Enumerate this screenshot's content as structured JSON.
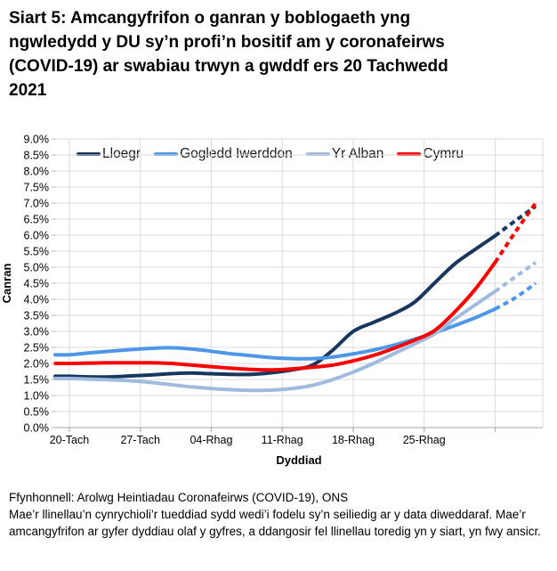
{
  "title": "Siart 5: Amcangyfrifon o ganran y boblogaeth yng ngwledydd y DU sy’n profi’n bositif am y coronafeirws (COVID-19) ar swabiau trwyn a gwddf ers 20 Tachwedd 2021",
  "footer": {
    "source": "Ffynhonnell: Arolwg Heintiadau Coronafeirws (COVID-19), ONS",
    "note": "Mae’r llinellau’n cynrychioli’r tueddiad sydd wedi’i fodelu sy’n seiliedig ar y data diweddaraf. Mae’r amcangyfrifon ar gyfer dyddiau olaf y gyfres, a ddangosir fel llinellau toredig yn y siart, yn fwy ansicr."
  },
  "colors": {
    "grid": "#DADADA",
    "axis": "#B5B5B5",
    "text": "#000000"
  },
  "chart_data": {
    "type": "line",
    "xlabel": "Dyddiad",
    "ylabel": "Canran",
    "ylim": [
      0,
      9
    ],
    "grid": true,
    "legend_position": "top-inside",
    "yticks": [
      "0.0%",
      "0.5%",
      "1.0%",
      "1.5%",
      "2.0%",
      "2.5%",
      "3.0%",
      "3.5%",
      "4.0%",
      "4.5%",
      "5.0%",
      "5.5%",
      "6.0%",
      "6.5%",
      "7.0%",
      "7.5%",
      "8.0%",
      "8.5%",
      "9.0%"
    ],
    "xticks": [
      {
        "day": 0,
        "label": "20-Tach"
      },
      {
        "day": 7,
        "label": "27-Tach"
      },
      {
        "day": 14,
        "label": "04-Rhag"
      },
      {
        "day": 21,
        "label": "11-Rhag"
      },
      {
        "day": 28,
        "label": "18-Rhag"
      },
      {
        "day": 35,
        "label": "25-Rhag"
      },
      {
        "day": 42,
        "label": ""
      }
    ],
    "days": [
      0,
      2,
      4,
      6,
      8,
      10,
      12,
      14,
      16,
      18,
      20,
      22,
      24,
      26,
      28,
      30,
      32,
      34,
      36,
      38,
      40,
      42,
      44,
      46
    ],
    "dashed_from_day": 42,
    "series": [
      {
        "name": "Lloegr",
        "color": "#17375E",
        "values": [
          1.6,
          1.58,
          1.58,
          1.61,
          1.64,
          1.68,
          1.7,
          1.68,
          1.66,
          1.66,
          1.71,
          1.8,
          1.95,
          2.42,
          3.0,
          3.28,
          3.55,
          3.9,
          4.5,
          5.1,
          5.55,
          5.98,
          6.45,
          6.9
        ]
      },
      {
        "name": "Gogledd Iwerddon",
        "color": "#4D96E8",
        "values": [
          2.27,
          2.33,
          2.38,
          2.43,
          2.47,
          2.49,
          2.45,
          2.38,
          2.3,
          2.24,
          2.18,
          2.15,
          2.15,
          2.2,
          2.3,
          2.42,
          2.57,
          2.75,
          2.95,
          3.18,
          3.42,
          3.7,
          4.05,
          4.5
        ]
      },
      {
        "name": "Yr Alban",
        "color": "#A0BAE0",
        "values": [
          1.53,
          1.51,
          1.49,
          1.46,
          1.41,
          1.34,
          1.27,
          1.22,
          1.18,
          1.16,
          1.17,
          1.22,
          1.32,
          1.5,
          1.73,
          2.0,
          2.3,
          2.6,
          2.92,
          3.38,
          3.82,
          4.25,
          4.7,
          5.15
        ]
      },
      {
        "name": "Cymru",
        "color": "#FA0000",
        "values": [
          2.0,
          2.01,
          2.02,
          2.02,
          2.02,
          2.0,
          1.95,
          1.9,
          1.85,
          1.81,
          1.8,
          1.83,
          1.88,
          1.95,
          2.08,
          2.25,
          2.47,
          2.72,
          3.02,
          3.6,
          4.3,
          5.15,
          6.1,
          7.0
        ]
      }
    ]
  }
}
